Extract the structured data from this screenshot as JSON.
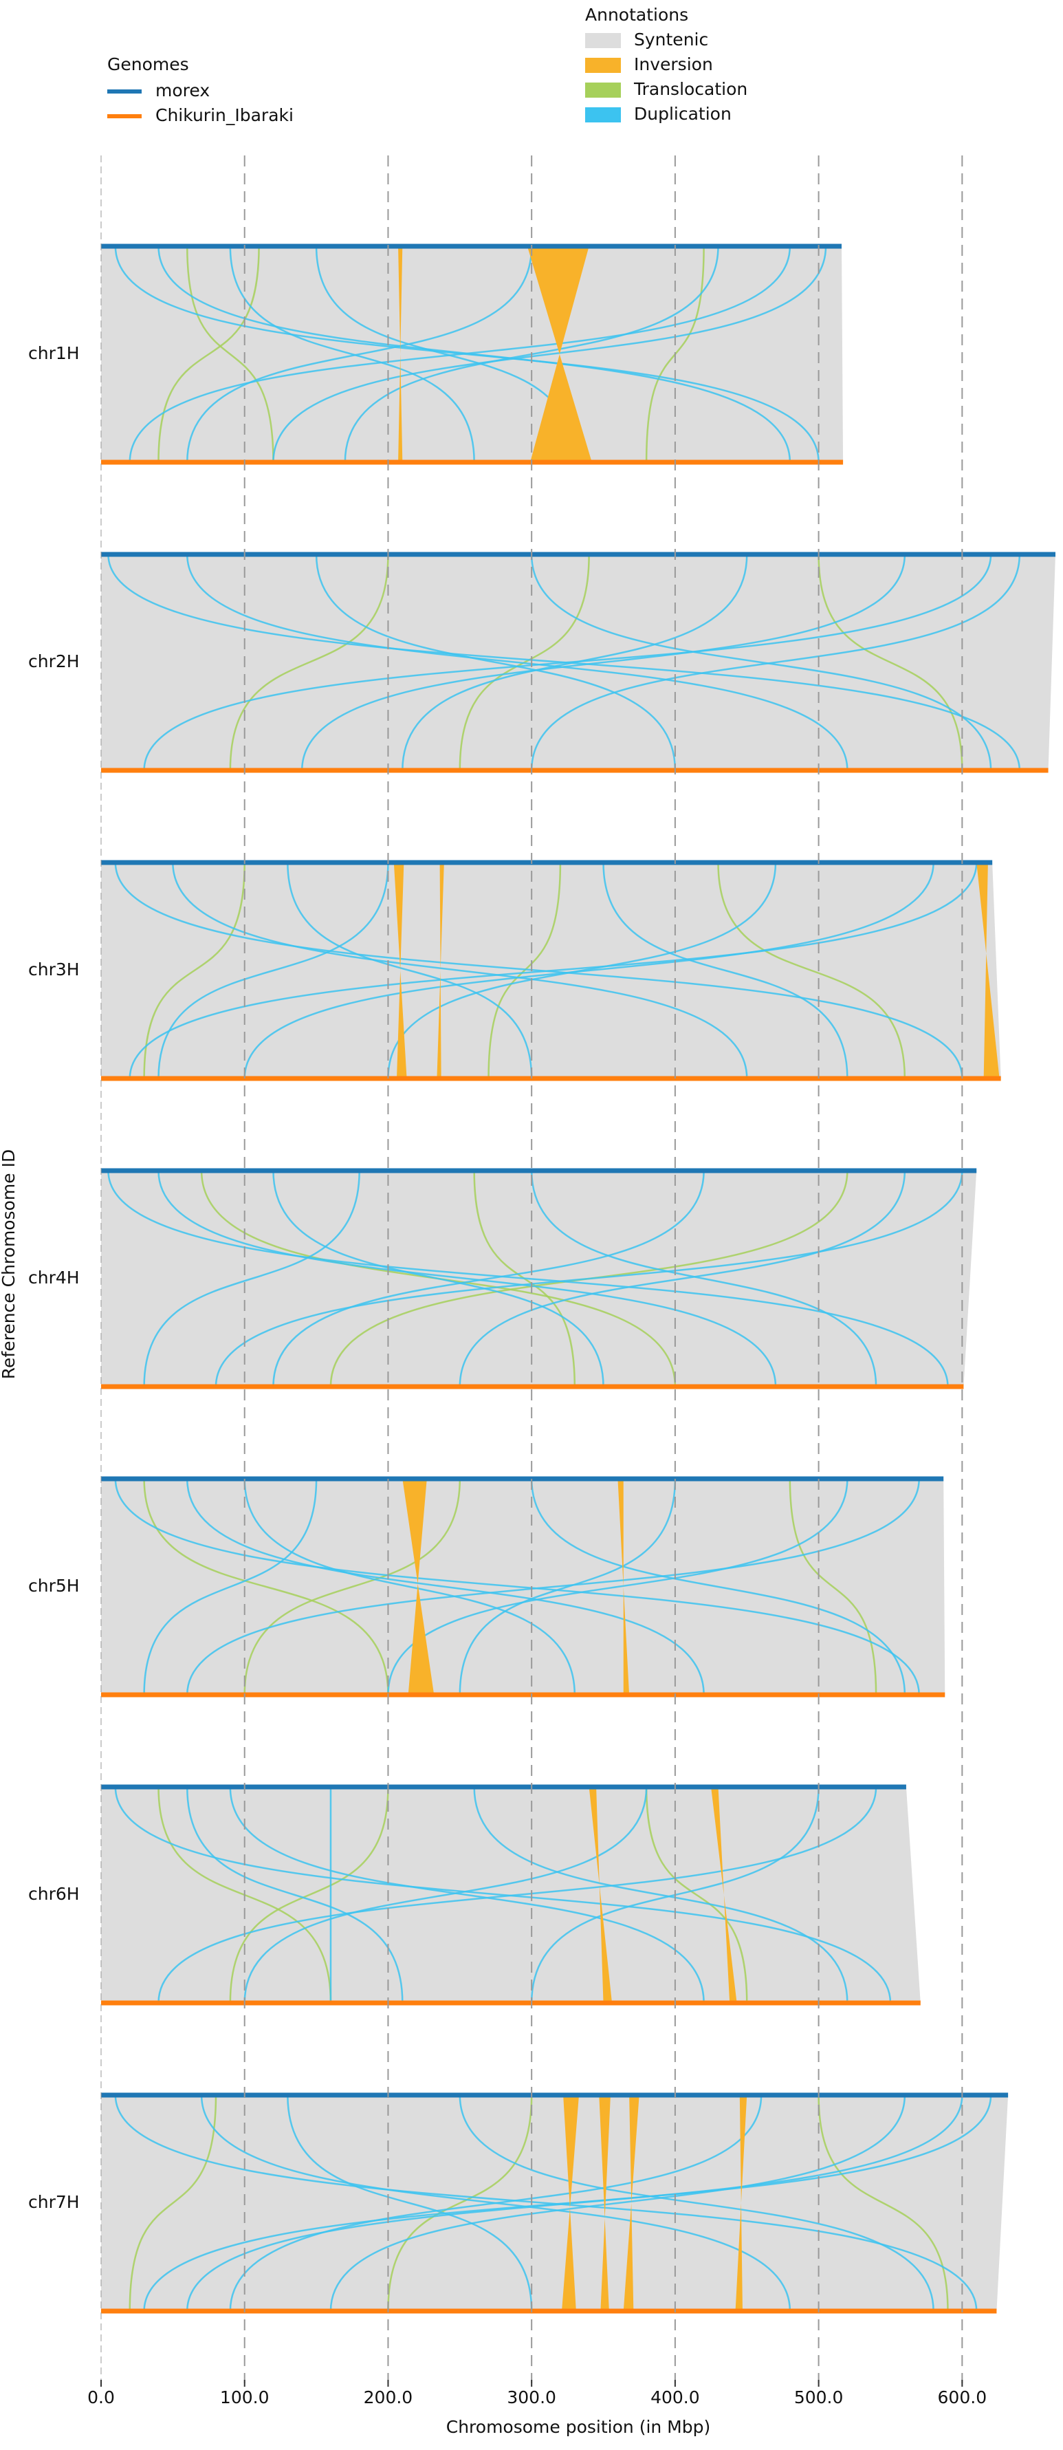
{
  "chart_data": {
    "type": "synteny",
    "x_label": "Chromosome position (in Mbp)",
    "y_label": "Reference Chromosome ID",
    "xlim": [
      0,
      665
    ],
    "xticks": [
      {
        "value": 0,
        "label": "0.0"
      },
      {
        "value": 100,
        "label": "100.0"
      },
      {
        "value": 200,
        "label": "200.0"
      },
      {
        "value": 300,
        "label": "300.0"
      },
      {
        "value": 400,
        "label": "400.0"
      },
      {
        "value": 500,
        "label": "500.0"
      },
      {
        "value": 600,
        "label": "600.0"
      }
    ],
    "grid": true,
    "genomes_title": "Genomes",
    "genomes": [
      {
        "name": "morex",
        "color": "#1f77b4"
      },
      {
        "name": "Chikurin_Ibaraki",
        "color": "#ff7f0e"
      }
    ],
    "annotations_title": "Annotations",
    "annotations": [
      {
        "name": "Syntenic",
        "color": "#dddddd"
      },
      {
        "name": "Inversion",
        "color": "#f8b22a"
      },
      {
        "name": "Translocation",
        "color": "#a6d05a"
      },
      {
        "name": "Duplication",
        "color": "#3cc3f0"
      }
    ],
    "chromosomes": [
      {
        "name": "chr1H",
        "ref_length": 516,
        "query_length": 517,
        "inversions": [
          {
            "ref": [
              297,
              340
            ],
            "query": [
              299,
              342
            ]
          },
          {
            "ref": [
              207,
              210
            ],
            "query": [
              207,
              210
            ]
          }
        ],
        "translocations": [
          [
            60,
            120
          ],
          [
            420,
            380
          ],
          [
            110,
            40
          ]
        ],
        "duplications": [
          [
            10,
            500
          ],
          [
            40,
            480
          ],
          [
            90,
            260
          ],
          [
            300,
            60
          ],
          [
            480,
            20
          ],
          [
            150,
            330
          ],
          [
            430,
            170
          ],
          [
            505,
            120
          ]
        ]
      },
      {
        "name": "chr2H",
        "ref_length": 665,
        "query_length": 660,
        "inversions": [],
        "translocations": [
          [
            200,
            90
          ],
          [
            500,
            600
          ],
          [
            340,
            250
          ]
        ],
        "duplications": [
          [
            5,
            640
          ],
          [
            60,
            520
          ],
          [
            150,
            400
          ],
          [
            620,
            30
          ],
          [
            560,
            140
          ],
          [
            300,
            620
          ],
          [
            450,
            210
          ],
          [
            640,
            300
          ]
        ]
      },
      {
        "name": "chr3H",
        "ref_length": 621,
        "query_length": 627,
        "inversions": [
          {
            "ref": [
              204,
              211
            ],
            "query": [
              206,
              213
            ]
          },
          {
            "ref": [
              236,
              239
            ],
            "query": [
              234,
              237
            ]
          },
          {
            "ref": [
              610,
              618
            ],
            "query": [
              615,
              626
            ]
          }
        ],
        "translocations": [
          [
            100,
            30
          ],
          [
            430,
            560
          ],
          [
            320,
            270
          ]
        ],
        "duplications": [
          [
            10,
            600
          ],
          [
            50,
            450
          ],
          [
            200,
            40
          ],
          [
            580,
            100
          ],
          [
            610,
            20
          ],
          [
            350,
            520
          ],
          [
            470,
            200
          ],
          [
            130,
            300
          ]
        ]
      },
      {
        "name": "chr4H",
        "ref_length": 610,
        "query_length": 601,
        "inversions": [],
        "translocations": [
          [
            70,
            400
          ],
          [
            520,
            160
          ],
          [
            260,
            330
          ]
        ],
        "duplications": [
          [
            5,
            590
          ],
          [
            40,
            470
          ],
          [
            180,
            30
          ],
          [
            600,
            80
          ],
          [
            560,
            250
          ],
          [
            300,
            540
          ],
          [
            420,
            120
          ],
          [
            120,
            350
          ]
        ]
      },
      {
        "name": "chr5H",
        "ref_length": 587,
        "query_length": 588,
        "inversions": [
          {
            "ref": [
              210,
              227
            ],
            "query": [
              214,
              232
            ]
          },
          {
            "ref": [
              360,
              364
            ],
            "query": [
              364,
              368
            ]
          }
        ],
        "translocations": [
          [
            30,
            200
          ],
          [
            480,
            540
          ],
          [
            250,
            100
          ]
        ],
        "duplications": [
          [
            10,
            570
          ],
          [
            60,
            420
          ],
          [
            150,
            30
          ],
          [
            570,
            60
          ],
          [
            520,
            200
          ],
          [
            300,
            560
          ],
          [
            400,
            250
          ],
          [
            100,
            330
          ]
        ]
      },
      {
        "name": "chr6H",
        "ref_length": 561,
        "query_length": 571,
        "inversions": [
          {
            "ref": [
              340,
              345
            ],
            "query": [
              350,
              356
            ]
          },
          {
            "ref": [
              425,
              430
            ],
            "query": [
              438,
              443
            ]
          }
        ],
        "translocations": [
          [
            40,
            160
          ],
          [
            380,
            450
          ],
          [
            200,
            90
          ]
        ],
        "duplications": [
          [
            10,
            550
          ],
          [
            90,
            420
          ],
          [
            160,
            160
          ],
          [
            540,
            40
          ],
          [
            500,
            300
          ],
          [
            260,
            520
          ],
          [
            380,
            100
          ],
          [
            60,
            210
          ]
        ]
      },
      {
        "name": "chr7H",
        "ref_length": 632,
        "query_length": 624,
        "inversions": [
          {
            "ref": [
              322,
              333
            ],
            "query": [
              321,
              331
            ]
          },
          {
            "ref": [
              347,
              355
            ],
            "query": [
              348,
              354
            ]
          },
          {
            "ref": [
              368,
              375
            ],
            "query": [
              364,
              371
            ]
          },
          {
            "ref": [
              445,
              450
            ],
            "query": [
              442,
              447
            ]
          }
        ],
        "translocations": [
          [
            80,
            20
          ],
          [
            500,
            590
          ],
          [
            300,
            200
          ]
        ],
        "duplications": [
          [
            10,
            610
          ],
          [
            70,
            480
          ],
          [
            130,
            300
          ],
          [
            600,
            60
          ],
          [
            560,
            160
          ],
          [
            250,
            580
          ],
          [
            460,
            90
          ],
          [
            620,
            30
          ]
        ]
      }
    ]
  }
}
